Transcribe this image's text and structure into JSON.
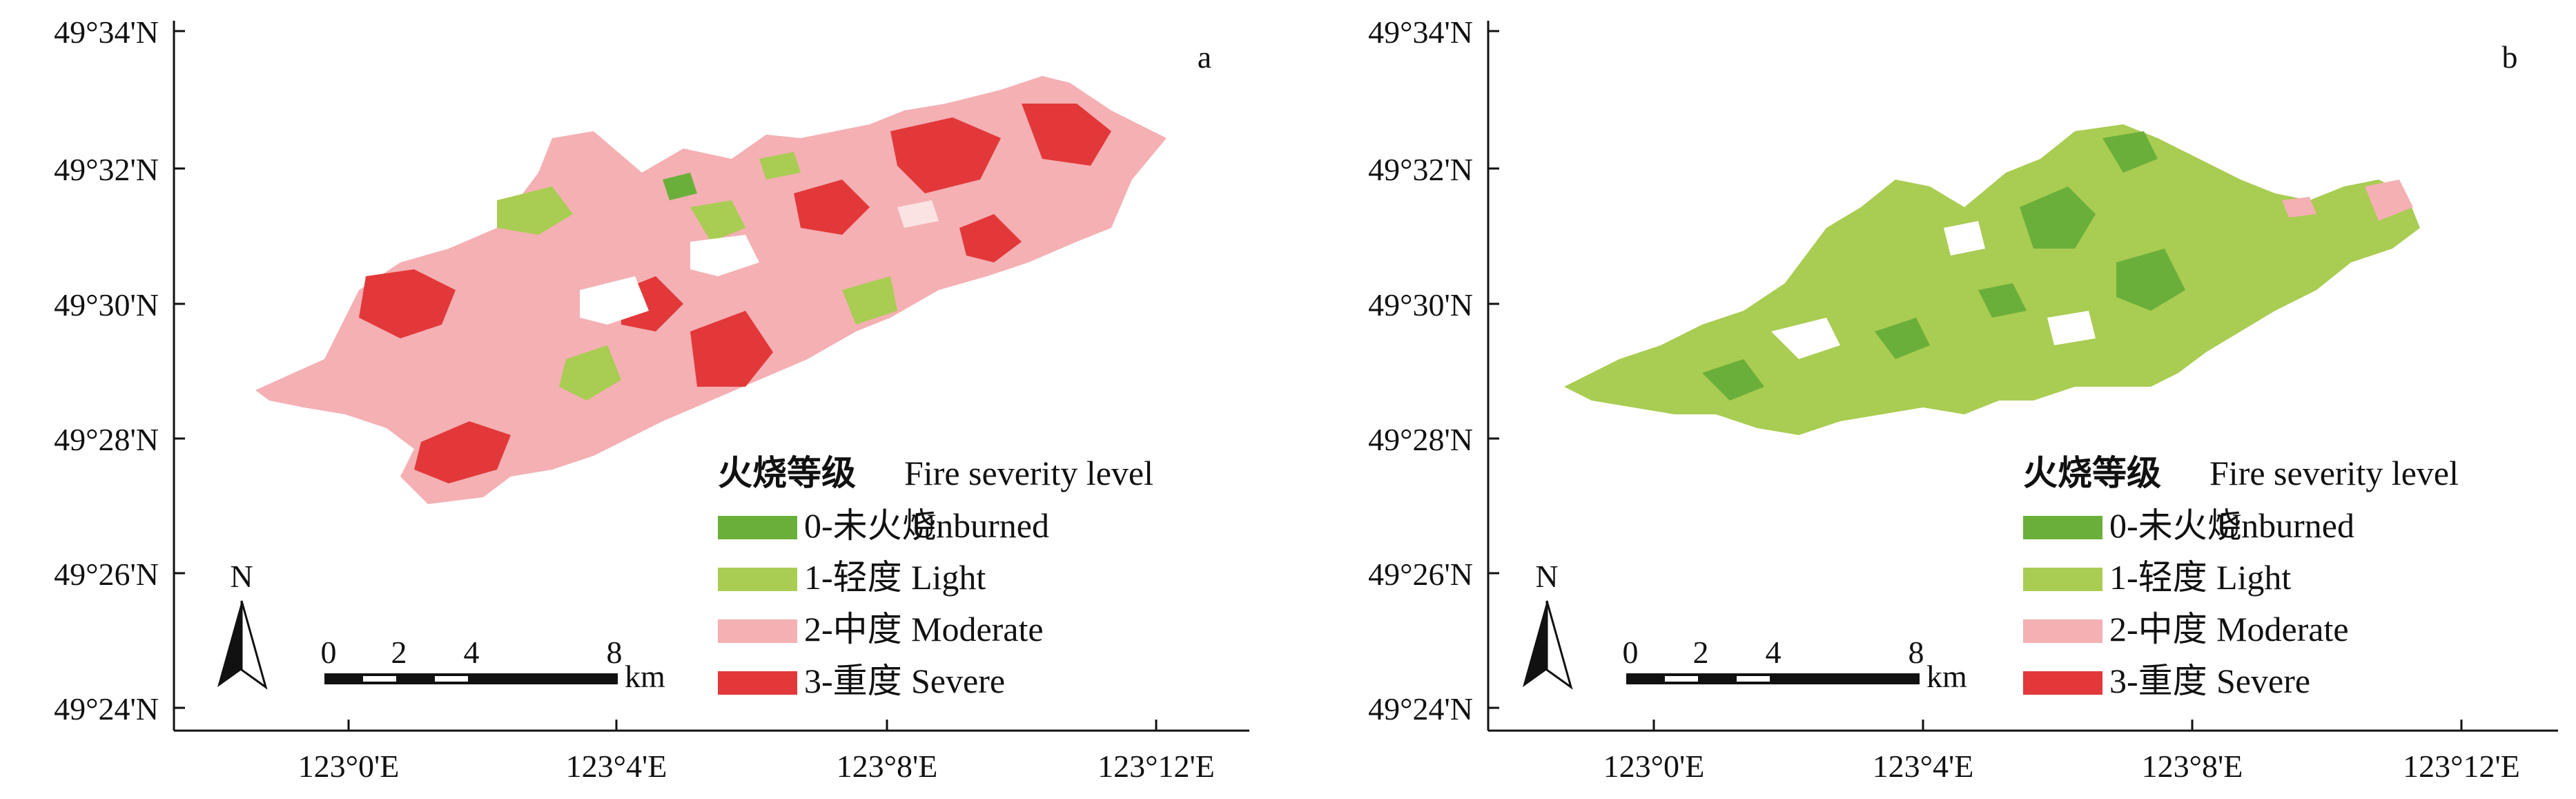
{
  "colors": {
    "unburned": "#6aaf3a",
    "light": "#a9cc52",
    "moderate": "#f4b0b3",
    "severe": "#e2383a",
    "axis": "#111111"
  },
  "axes": {
    "y_ticks": [
      "49°34'N",
      "49°32'N",
      "49°30'N",
      "49°28'N",
      "49°26'N",
      "49°24'N"
    ],
    "x_ticks": [
      "123°0'E",
      "123°4'E",
      "123°8'E",
      "123°12'E"
    ]
  },
  "legend": {
    "title_cn": "火烧等级",
    "title_en": "Fire severity level",
    "items": [
      {
        "cn": "0-未火烧",
        "en": "Unburned",
        "color": "#6aaf3a"
      },
      {
        "cn": "1-轻度",
        "en": "Light",
        "color": "#a9cc52"
      },
      {
        "cn": "2-中度",
        "en": "Moderate",
        "color": "#f4b0b3"
      },
      {
        "cn": "3-重度",
        "en": "Severe",
        "color": "#e2383a"
      }
    ]
  },
  "north_label": "N",
  "scalebar": {
    "labels": [
      "0",
      "2",
      "4",
      "8"
    ],
    "unit": "km"
  },
  "panels": [
    {
      "id": "a",
      "label": "a"
    },
    {
      "id": "b",
      "label": "b"
    }
  ]
}
